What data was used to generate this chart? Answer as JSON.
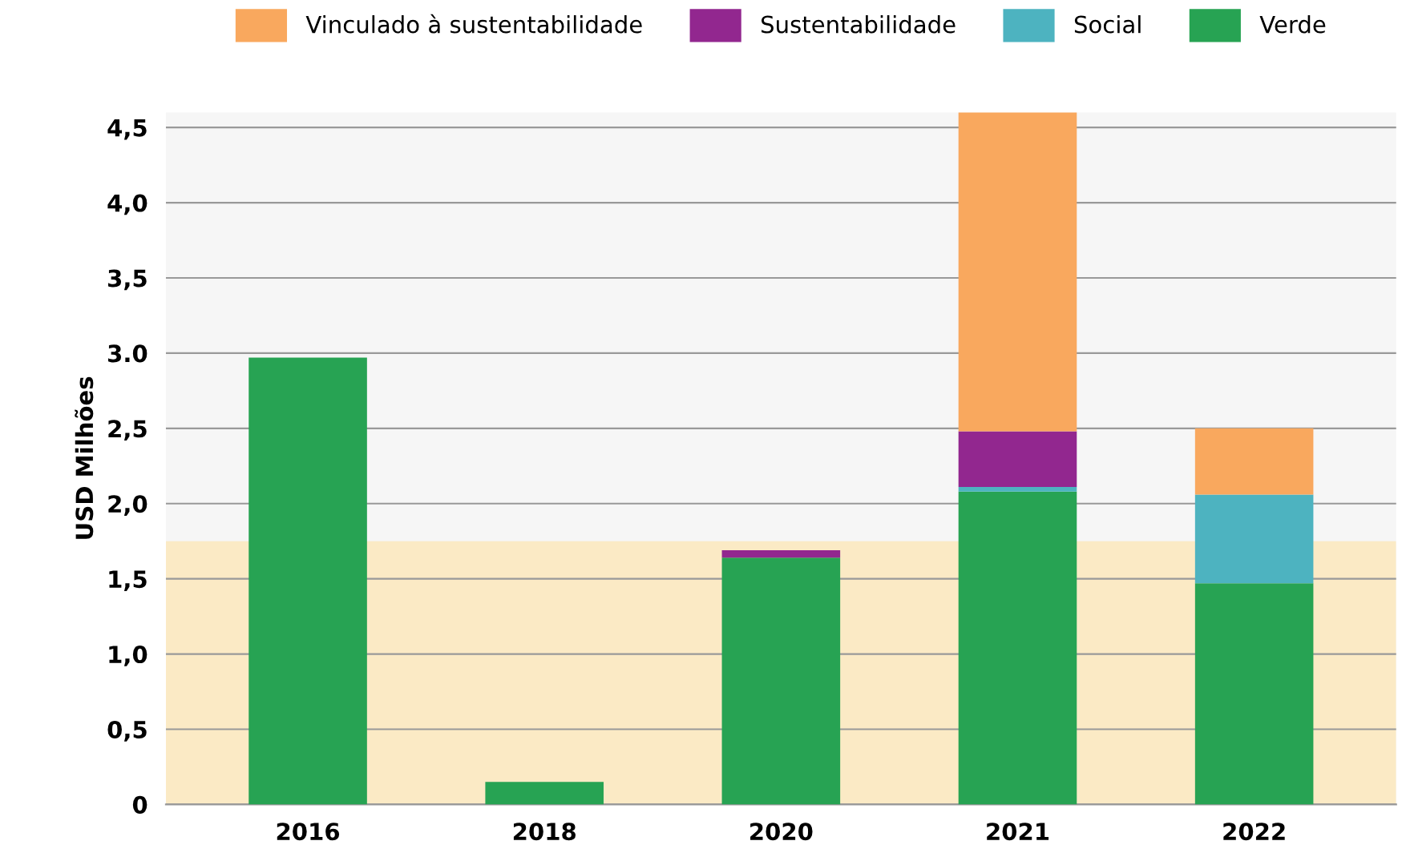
{
  "chart_data": {
    "type": "bar",
    "stacked": true,
    "ylabel": "USD Milhões",
    "categories": [
      "2016",
      "2018",
      "2020",
      "2021",
      "2022"
    ],
    "series": [
      {
        "name": "Verde",
        "color": "#27a353",
        "values": [
          2.97,
          0.15,
          1.64,
          2.08,
          1.47
        ]
      },
      {
        "name": "Social",
        "color": "#4db3c0",
        "values": [
          null,
          null,
          null,
          0.03,
          0.59
        ]
      },
      {
        "name": "Sustentabilidade",
        "color": "#92278f",
        "values": [
          null,
          null,
          0.05,
          0.37,
          null
        ]
      },
      {
        "name": "Vinculado à sustentabilidade",
        "color": "#f9a85e",
        "values": [
          null,
          null,
          null,
          2.13,
          0.44
        ]
      }
    ],
    "ylim": [
      0,
      4.6
    ],
    "yticks": [
      0,
      {
        "value": 0.5,
        "label": "0,5"
      },
      {
        "value": 1.0,
        "label": "1,0"
      },
      {
        "value": 1.5,
        "label": "1,5"
      },
      {
        "value": 2.0,
        "label": "2,0"
      },
      {
        "value": 2.5,
        "label": "2,5"
      },
      {
        "value": 3.0,
        "label": "3.0"
      },
      {
        "value": 3.5,
        "label": "3,5"
      },
      {
        "value": 4.0,
        "label": "4,0"
      },
      {
        "value": 4.5,
        "label": "4,5"
      }
    ],
    "bands": [
      {
        "axis": "y",
        "from": 0,
        "to": 1.75,
        "color": "#fde6b0"
      }
    ],
    "grid": "y",
    "legend": "top"
  }
}
